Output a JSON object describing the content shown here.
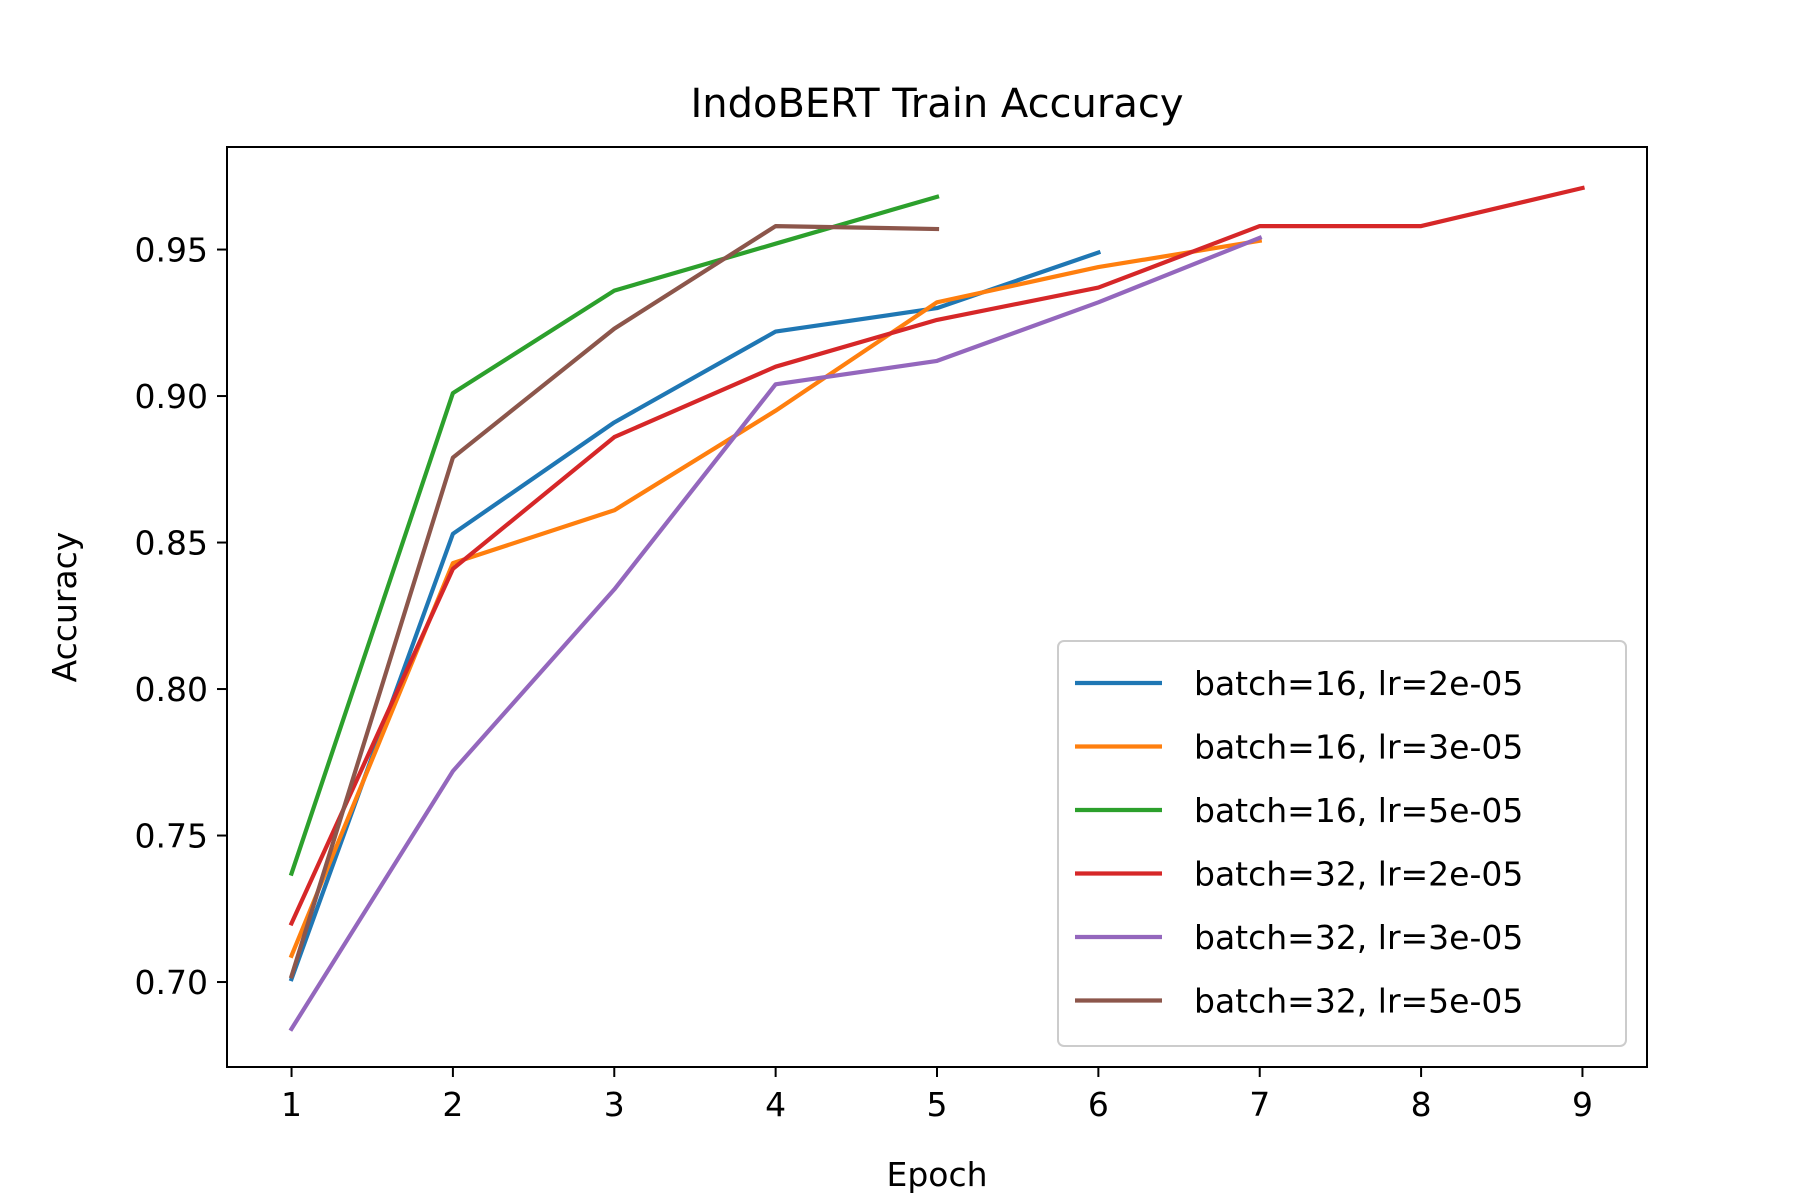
{
  "chart_data": {
    "type": "line",
    "title": "IndoBERT Train Accuracy",
    "xlabel": "Epoch",
    "ylabel": "Accuracy",
    "xlim": [
      0.6,
      9.4
    ],
    "ylim": [
      0.671,
      0.985
    ],
    "xticks": [
      1,
      2,
      3,
      4,
      5,
      6,
      7,
      8,
      9
    ],
    "xtick_labels": [
      "1",
      "2",
      "3",
      "4",
      "5",
      "6",
      "7",
      "8",
      "9"
    ],
    "yticks": [
      0.7,
      0.75,
      0.8,
      0.85,
      0.9,
      0.95
    ],
    "ytick_labels": [
      "0.70",
      "0.75",
      "0.80",
      "0.85",
      "0.90",
      "0.95"
    ],
    "grid": false,
    "legend_position": "lower-right",
    "series": [
      {
        "name": "batch=16, lr=2e-05",
        "color": "#1f77b4",
        "x": [
          1,
          2,
          3,
          4,
          5,
          6
        ],
        "y": [
          0.701,
          0.853,
          0.891,
          0.922,
          0.93,
          0.949
        ]
      },
      {
        "name": "batch=16, lr=3e-05",
        "color": "#ff7f0e",
        "x": [
          1,
          2,
          3,
          4,
          5,
          6,
          7
        ],
        "y": [
          0.709,
          0.843,
          0.861,
          0.895,
          0.932,
          0.944,
          0.953
        ]
      },
      {
        "name": "batch=16, lr=5e-05",
        "color": "#2ca02c",
        "x": [
          1,
          2,
          3,
          4,
          5
        ],
        "y": [
          0.737,
          0.901,
          0.936,
          0.952,
          0.968
        ]
      },
      {
        "name": "batch=32, lr=2e-05",
        "color": "#d62728",
        "x": [
          1,
          2,
          3,
          4,
          5,
          6,
          7,
          8,
          9
        ],
        "y": [
          0.72,
          0.841,
          0.886,
          0.91,
          0.926,
          0.937,
          0.958,
          0.958,
          0.971
        ]
      },
      {
        "name": "batch=32, lr=3e-05",
        "color": "#9467bd",
        "x": [
          1,
          2,
          3,
          4,
          5,
          6,
          7
        ],
        "y": [
          0.684,
          0.772,
          0.834,
          0.904,
          0.912,
          0.932,
          0.954
        ]
      },
      {
        "name": "batch=32, lr=5e-05",
        "color": "#8c564b",
        "x": [
          1,
          2,
          3,
          4,
          5
        ],
        "y": [
          0.702,
          0.879,
          0.923,
          0.958,
          0.957
        ]
      }
    ]
  }
}
